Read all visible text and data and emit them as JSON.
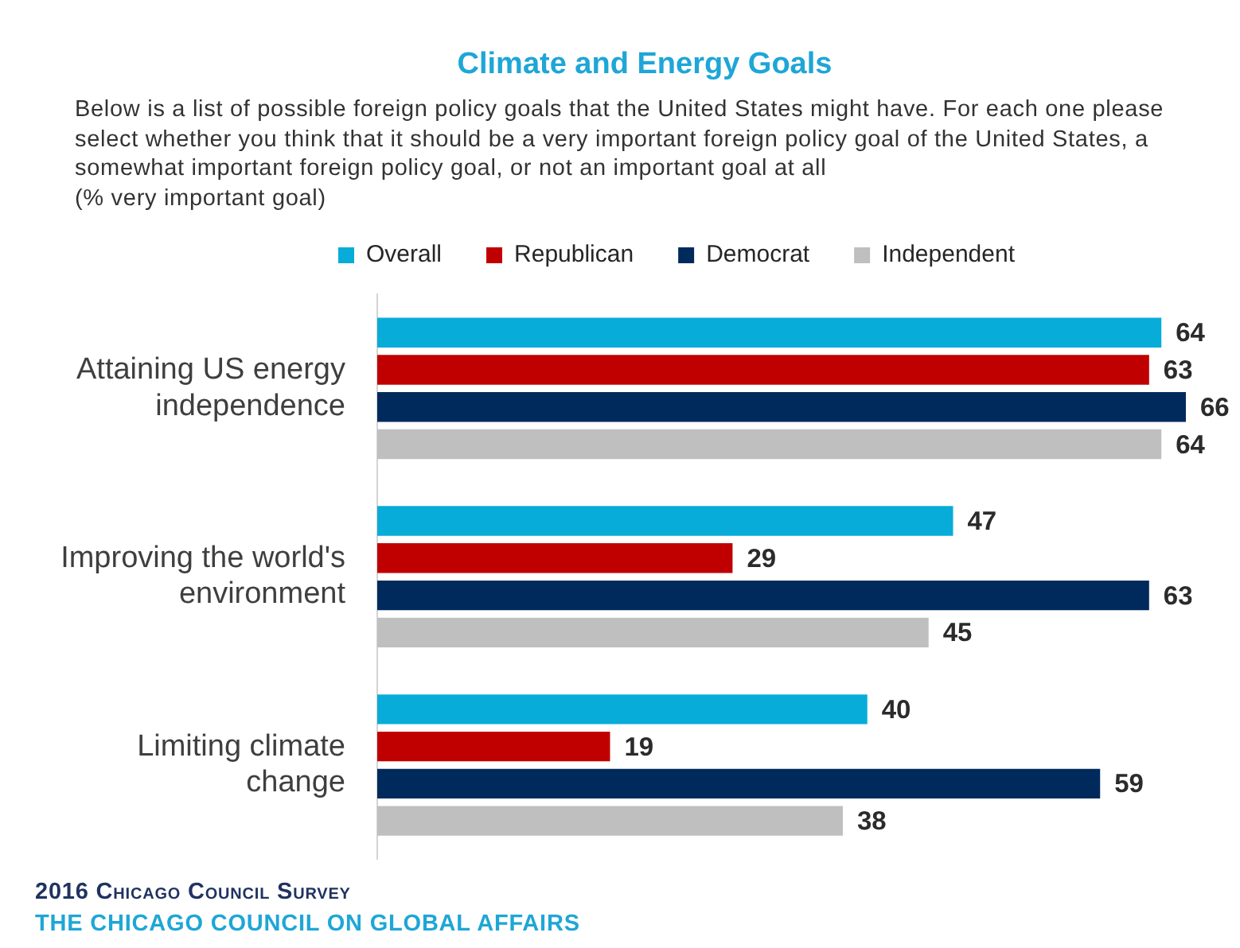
{
  "chart_data": {
    "type": "bar",
    "orientation": "horizontal",
    "title": "Climate and Energy Goals",
    "subtitle": "Below is a list of possible foreign policy goals that the United States might have. For each one please select whether you think that it should be a very important foreign policy goal of the United States, a somewhat important foreign policy goal, or not an important goal at all\n(% very important goal)",
    "categories": [
      "Attaining US energy independence",
      "Improving the world's environment",
      "Limiting climate change"
    ],
    "series": [
      {
        "name": "Overall",
        "color": "#08acd8",
        "values": [
          64,
          47,
          40
        ]
      },
      {
        "name": "Republican",
        "color": "#c00000",
        "values": [
          63,
          29,
          19
        ]
      },
      {
        "name": "Democrat",
        "color": "#002a5c",
        "values": [
          66,
          63,
          59
        ]
      },
      {
        "name": "Independent",
        "color": "#bfbfbf",
        "values": [
          64,
          45,
          38
        ]
      }
    ],
    "xlim": [
      0,
      66
    ],
    "tick_labels": "y",
    "grid": false,
    "legend": "top",
    "data_labels": true,
    "annotations": [
      "2016 Chicago Council Survey",
      "THE CHICAGO COUNCIL ON GLOBAL AFFAIRS"
    ]
  }
}
